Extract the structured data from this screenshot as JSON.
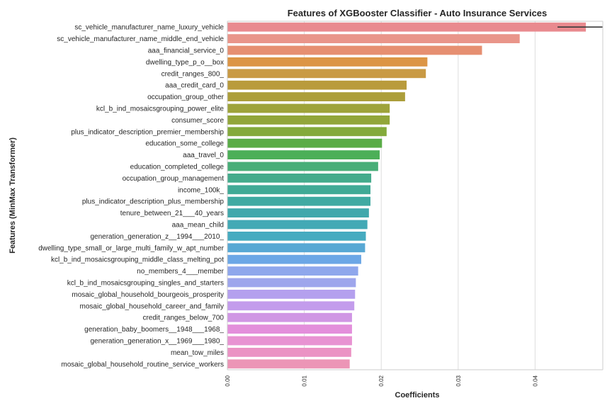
{
  "chart_data": {
    "type": "bar",
    "orientation": "horizontal",
    "title": "Features of XGBooster Classifier - Auto Insurance Services",
    "xlabel": "Coefficients",
    "ylabel": "Features (MinMax Transformer)",
    "xlim": [
      0,
      0.0488
    ],
    "xticks": [
      0.0,
      0.01,
      0.02,
      0.03,
      0.04
    ],
    "xtick_labels": [
      "0.00",
      "0.01",
      "0.02",
      "0.03",
      "0.04"
    ],
    "grid": true,
    "legend": "none",
    "categories": [
      "sc_vehicle_manufacturer_name_luxury_vehicle",
      "sc_vehicle_manufacturer_name_middle_end_vehicle",
      "aaa_financial_service_0",
      "dwelling_type_p_o__box",
      "credit_ranges_800_",
      "aaa_credit_card_0",
      "occupation_group_other",
      "kcl_b_ind_mosaicsgrouping_power_elite",
      "consumer_score",
      "plus_indicator_description_premier_membership",
      "education_some_college",
      "aaa_travel_0",
      "education_completed_college",
      "occupation_group_management",
      "income_100k_",
      "plus_indicator_description_plus_membership",
      "tenure_between_21___40_years",
      "aaa_mean_child",
      "generation_generation_z__1994___2010_",
      "dwelling_type_small_or_large_multi_family_w_apt_number",
      "kcl_b_ind_mosaicsgrouping_middle_class_melting_pot",
      "no_members_4___member",
      "kcl_b_ind_mosaicsgrouping_singles_and_starters",
      "mosaic_global_household_bourgeois_prosperity",
      "mosaic_global_household_career_and_family",
      "credit_ranges_below_700",
      "generation_baby_boomers__1948___1968_",
      "generation_generation_x__1969___1980_",
      "mean_tow_miles",
      "mosaic_global_household_routine_service_workers"
    ],
    "values": [
      0.0466,
      0.038,
      0.0331,
      0.026,
      0.0258,
      0.0233,
      0.0231,
      0.0211,
      0.0211,
      0.0207,
      0.0201,
      0.0198,
      0.0196,
      0.0187,
      0.0186,
      0.0186,
      0.0184,
      0.0182,
      0.018,
      0.0179,
      0.0174,
      0.017,
      0.0167,
      0.0166,
      0.0165,
      0.0162,
      0.0162,
      0.0162,
      0.0161,
      0.0159
    ],
    "colors": [
      "#e98a8f",
      "#e9958a",
      "#e68f71",
      "#dc9545",
      "#c99a44",
      "#b99b3c",
      "#ac9e3b",
      "#9ea33a",
      "#92a63a",
      "#84aa3b",
      "#5aac47",
      "#4caf58",
      "#48ae78",
      "#44ab8c",
      "#41aa96",
      "#40aaa2",
      "#40a8ac",
      "#42a9b5",
      "#46abc0",
      "#58a8d4",
      "#6ca7e6",
      "#8fa7ec",
      "#9ea6ec",
      "#b4a0ee",
      "#c39cec",
      "#d096e4",
      "#e38fdb",
      "#e893d2",
      "#eb93c4",
      "#ec95b6"
    ],
    "top_bar_errorbar": true
  }
}
